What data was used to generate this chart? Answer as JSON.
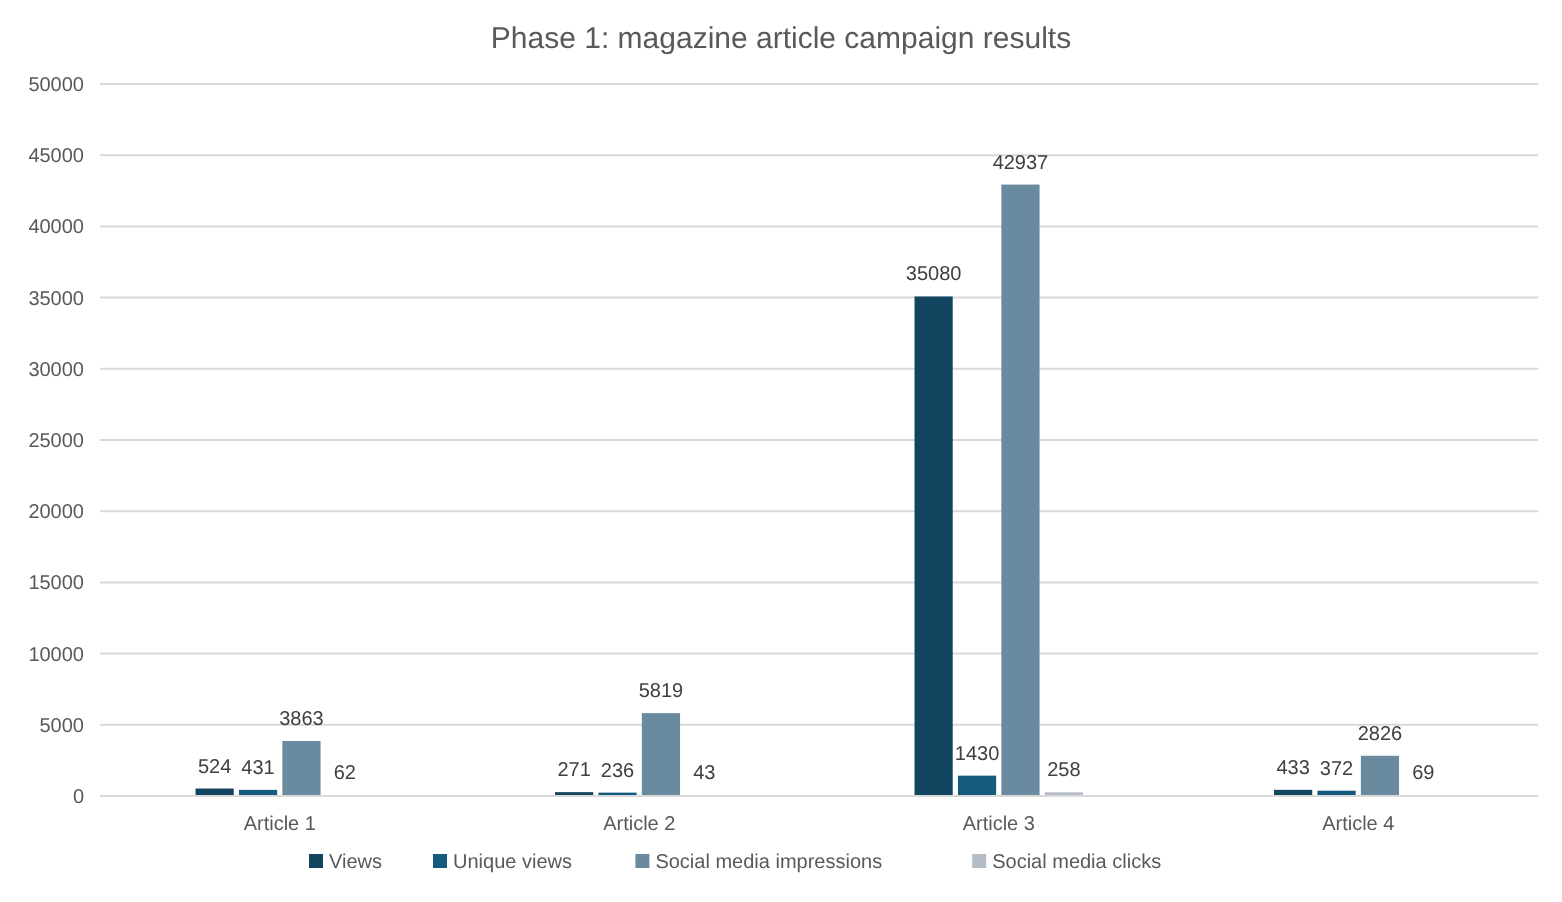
{
  "chart_data": {
    "type": "bar",
    "title": "Phase 1: magazine article campaign results",
    "categories": [
      "Article 1",
      "Article 2",
      "Article 3",
      "Article 4"
    ],
    "series": [
      {
        "name": "Views",
        "color": "#124660",
        "values": [
          524,
          271,
          35080,
          433
        ]
      },
      {
        "name": "Unique views",
        "color": "#145a7c",
        "values": [
          431,
          236,
          1430,
          372
        ]
      },
      {
        "name": "Social media impressions",
        "color": "#6a8aa0",
        "values": [
          3863,
          5819,
          42937,
          2826
        ]
      },
      {
        "name": "Social media clicks",
        "color": "#b4bcc6",
        "values": [
          62,
          43,
          258,
          69
        ]
      }
    ],
    "ylim": [
      0,
      50000
    ],
    "yticks": [
      0,
      5000,
      10000,
      15000,
      20000,
      25000,
      30000,
      35000,
      40000,
      45000,
      50000
    ],
    "grid": "y",
    "legend": "bottom",
    "data_labels": true
  }
}
